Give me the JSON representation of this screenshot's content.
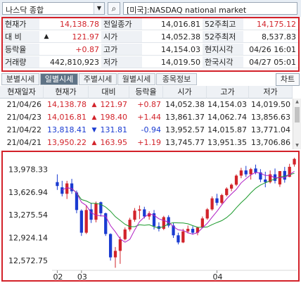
{
  "search": {
    "symbol": "나스닥 종합",
    "market": "[미국]:NASDAQ national market"
  },
  "quote": {
    "rows": [
      {
        "l1": "현재가",
        "v1": "14,138.78",
        "c1": "red",
        "l2": "전일종가",
        "v2": "14,016.81",
        "c2": "blk",
        "l3": "52주최고",
        "v3": "14,175.12",
        "c3": "red"
      },
      {
        "l1": "대  비",
        "v1": "121.97",
        "c1": "red",
        "a1": "▲",
        "l2": "시가",
        "v2": "14,052.38",
        "c2": "blk",
        "l3": "52주최저",
        "v3": "8,537.83",
        "c3": "blk"
      },
      {
        "l1": "등락율",
        "v1": "+0.87",
        "c1": "red",
        "l2": "고가",
        "v2": "14,154.03",
        "c2": "blk",
        "l3": "현지시각",
        "v3": "04/26 16:01",
        "c3": "blk"
      },
      {
        "l1": "거래량",
        "v1": "442,810,923",
        "c1": "blk",
        "l2": "저가",
        "v2": "14,019.50",
        "c2": "blk",
        "l3": "한국시각",
        "v3": "04/27 05:01",
        "c3": "blk"
      }
    ]
  },
  "tabs": [
    "분별시세",
    "일별시세",
    "주별시세",
    "월별시세",
    "종목정보"
  ],
  "chart_button": "차트",
  "daily": {
    "headers": [
      "현재일자",
      "현재가",
      "대비",
      "등락율",
      "시가",
      "고가",
      "저가"
    ],
    "rows": [
      {
        "date": "21/04/26",
        "price": "14,138.78",
        "dir": "▲",
        "chg": "121.97",
        "rate": "+0.87",
        "open": "14,052.38",
        "high": "14,154.03",
        "low": "14,019.50",
        "color": "red"
      },
      {
        "date": "21/04/23",
        "price": "14,016.81",
        "dir": "▲",
        "chg": "198.40",
        "rate": "+1.44",
        "open": "13,861.37",
        "high": "14,062.74",
        "low": "13,856.63",
        "color": "red"
      },
      {
        "date": "21/04/22",
        "price": "13,818.41",
        "dir": "▼",
        "chg": "131.81",
        "rate": "-0.94",
        "open": "13,952.57",
        "high": "14,015.87",
        "low": "13,771.04",
        "color": "blue"
      },
      {
        "date": "21/04/21",
        "price": "13,950.22",
        "dir": "▲",
        "chg": "163.95",
        "rate": "+1.19",
        "open": "13,745.77",
        "high": "13,951.35",
        "low": "13,706.86",
        "color": "red"
      }
    ]
  },
  "chart_data": {
    "type": "candlestick",
    "y_ticks": [
      "13,978.33",
      "13,626.94",
      "13,275.54",
      "12,924.14",
      "12,572.75"
    ],
    "y_tick_values": [
      13978.33,
      13626.94,
      13275.54,
      12924.14,
      12572.75
    ],
    "x_labels": [
      "02",
      "03",
      "04"
    ],
    "ylim": [
      12420,
      14200
    ],
    "up_color": "#d2232a",
    "down_color": "#1a3bd1",
    "ma_colors": [
      "#1b9a2c",
      "#b01ec4"
    ],
    "candles": [
      {
        "o": 13780,
        "h": 13900,
        "l": 13660,
        "c": 13720
      },
      {
        "o": 13700,
        "h": 13800,
        "l": 13560,
        "c": 13600
      },
      {
        "o": 13600,
        "h": 13800,
        "l": 13520,
        "c": 13760
      },
      {
        "o": 13760,
        "h": 13830,
        "l": 13600,
        "c": 13640
      },
      {
        "o": 13620,
        "h": 13650,
        "l": 13300,
        "c": 13350
      },
      {
        "o": 13340,
        "h": 13360,
        "l": 12950,
        "c": 13000
      },
      {
        "o": 13000,
        "h": 13420,
        "l": 12980,
        "c": 13350
      },
      {
        "o": 13360,
        "h": 13460,
        "l": 13150,
        "c": 13200
      },
      {
        "o": 13200,
        "h": 13480,
        "l": 13160,
        "c": 13450
      },
      {
        "o": 13470,
        "h": 13480,
        "l": 13250,
        "c": 13300
      },
      {
        "o": 13300,
        "h": 13310,
        "l": 12950,
        "c": 12980
      },
      {
        "o": 12980,
        "h": 12990,
        "l": 12570,
        "c": 12620
      },
      {
        "o": 12620,
        "h": 12780,
        "l": 12460,
        "c": 12720
      },
      {
        "o": 12720,
        "h": 12940,
        "l": 12520,
        "c": 12900
      },
      {
        "o": 12900,
        "h": 13080,
        "l": 12880,
        "c": 13050
      },
      {
        "o": 13050,
        "h": 13230,
        "l": 13020,
        "c": 13200
      },
      {
        "o": 13200,
        "h": 13380,
        "l": 13170,
        "c": 13340
      },
      {
        "o": 13340,
        "h": 13420,
        "l": 13210,
        "c": 13360
      },
      {
        "o": 13360,
        "h": 13400,
        "l": 13220,
        "c": 13250
      },
      {
        "o": 13250,
        "h": 13330,
        "l": 13200,
        "c": 13300
      },
      {
        "o": 13300,
        "h": 13350,
        "l": 13050,
        "c": 13100
      },
      {
        "o": 13100,
        "h": 13160,
        "l": 13020,
        "c": 13060
      },
      {
        "o": 13060,
        "h": 13260,
        "l": 13040,
        "c": 13240
      },
      {
        "o": 13240,
        "h": 13270,
        "l": 13080,
        "c": 13110
      },
      {
        "o": 13110,
        "h": 13150,
        "l": 12920,
        "c": 12960
      },
      {
        "o": 12960,
        "h": 13000,
        "l": 12820,
        "c": 12850
      },
      {
        "o": 12850,
        "h": 13060,
        "l": 12840,
        "c": 13020
      },
      {
        "o": 13020,
        "h": 13110,
        "l": 12990,
        "c": 13060
      },
      {
        "o": 13060,
        "h": 13100,
        "l": 12970,
        "c": 13000
      },
      {
        "o": 13000,
        "h": 13090,
        "l": 12960,
        "c": 13080
      },
      {
        "o": 13080,
        "h": 13250,
        "l": 13070,
        "c": 13220
      },
      {
        "o": 13220,
        "h": 13380,
        "l": 13200,
        "c": 13360
      },
      {
        "o": 13360,
        "h": 13560,
        "l": 13340,
        "c": 13530
      },
      {
        "o": 13530,
        "h": 13600,
        "l": 13420,
        "c": 13460
      },
      {
        "o": 13460,
        "h": 13600,
        "l": 13440,
        "c": 13580
      },
      {
        "o": 13580,
        "h": 13700,
        "l": 13560,
        "c": 13680
      },
      {
        "o": 13680,
        "h": 13760,
        "l": 13640,
        "c": 13740
      },
      {
        "o": 13740,
        "h": 13900,
        "l": 13720,
        "c": 13880
      },
      {
        "o": 13880,
        "h": 14000,
        "l": 13840,
        "c": 13960
      },
      {
        "o": 13960,
        "h": 14030,
        "l": 13860,
        "c": 13900
      },
      {
        "o": 13900,
        "h": 14000,
        "l": 13820,
        "c": 13980
      },
      {
        "o": 13990,
        "h": 14050,
        "l": 13900,
        "c": 13930
      },
      {
        "o": 13930,
        "h": 13980,
        "l": 13780,
        "c": 13820
      },
      {
        "o": 13820,
        "h": 13940,
        "l": 13700,
        "c": 13780
      },
      {
        "o": 13780,
        "h": 13960,
        "l": 13760,
        "c": 13900
      },
      {
        "o": 13900,
        "h": 13990,
        "l": 13760,
        "c": 13800
      },
      {
        "o": 13745,
        "h": 13951,
        "l": 13706,
        "c": 13950
      },
      {
        "o": 13952,
        "h": 14015,
        "l": 13771,
        "c": 13818
      },
      {
        "o": 13861,
        "h": 14062,
        "l": 13856,
        "c": 14016
      },
      {
        "o": 14052,
        "h": 14154,
        "l": 14019,
        "c": 14138
      }
    ]
  }
}
